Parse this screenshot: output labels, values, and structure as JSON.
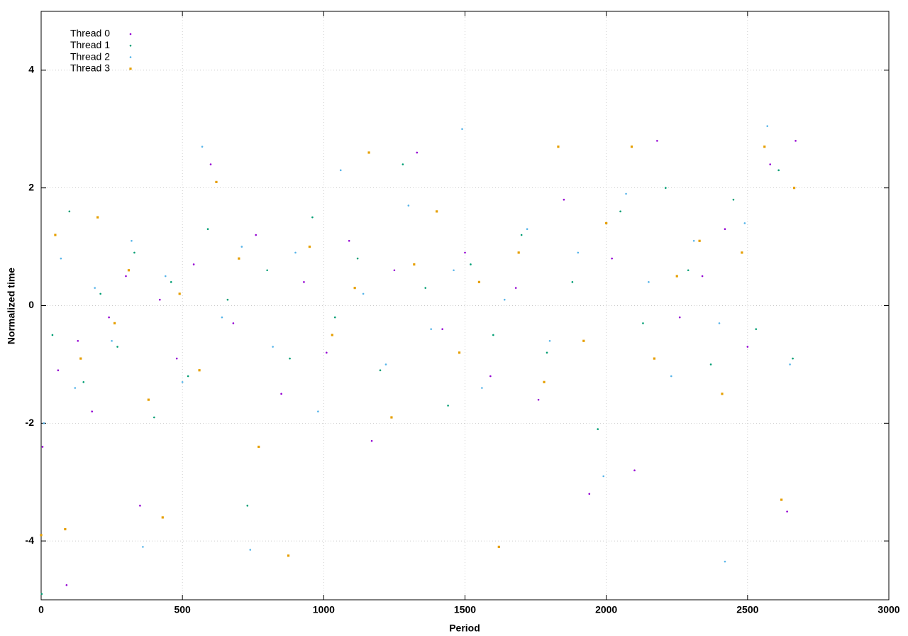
{
  "chart_data": {
    "type": "scatter",
    "x_label": "Period",
    "y_label": "Normalized time",
    "xlim": [
      0,
      3000
    ],
    "xticks": [
      0,
      500,
      1000,
      1500,
      2000,
      2500,
      3000
    ],
    "ylim": [
      -5,
      5
    ],
    "yticks": [
      -4,
      -2,
      0,
      2,
      4
    ],
    "grid": true,
    "legend": "top-left",
    "series": [
      {
        "name": "Thread 0",
        "color": "#9400d3",
        "marker": "dot",
        "x": [
          5,
          60,
          90,
          130,
          180,
          240,
          300,
          350,
          420,
          480,
          540,
          600,
          680,
          760,
          850,
          930,
          1010,
          1090,
          1170,
          1250,
          1330,
          1420,
          1500,
          1590,
          1680,
          1760,
          1850,
          1940,
          2020,
          2100,
          2180,
          2260,
          2340,
          2420,
          2500,
          2580,
          2640,
          2670
        ],
        "values": [
          -2.4,
          -1.1,
          -4.75,
          -0.6,
          -1.8,
          -0.2,
          0.5,
          -3.4,
          0.1,
          -0.9,
          0.7,
          2.4,
          -0.3,
          1.2,
          -1.5,
          0.4,
          -0.8,
          1.1,
          -2.3,
          0.6,
          2.6,
          -0.4,
          0.9,
          -1.2,
          0.3,
          -1.6,
          1.8,
          -3.2,
          0.8,
          -2.8,
          2.8,
          -0.2,
          0.5,
          1.3,
          -0.7,
          2.4,
          -3.5,
          2.8
        ]
      },
      {
        "name": "Thread 1",
        "color": "#009e73",
        "marker": "dot",
        "x": [
          2,
          40,
          100,
          150,
          210,
          270,
          330,
          400,
          460,
          520,
          590,
          660,
          730,
          800,
          880,
          960,
          1040,
          1120,
          1200,
          1280,
          1360,
          1440,
          1520,
          1600,
          1700,
          1790,
          1880,
          1970,
          2050,
          2130,
          2210,
          2290,
          2370,
          2450,
          2530,
          2610,
          2660
        ],
        "values": [
          -4.9,
          -0.5,
          1.6,
          -1.3,
          0.2,
          -0.7,
          0.9,
          -1.9,
          0.4,
          -1.2,
          1.3,
          0.1,
          -3.4,
          0.6,
          -0.9,
          1.5,
          -0.2,
          0.8,
          -1.1,
          2.4,
          0.3,
          -1.7,
          0.7,
          -0.5,
          1.2,
          -0.8,
          0.4,
          -2.1,
          1.6,
          -0.3,
          2.0,
          0.6,
          -1.0,
          1.8,
          -0.4,
          2.3,
          -0.9
        ]
      },
      {
        "name": "Thread 2",
        "color": "#56b4e9",
        "marker": "dot",
        "x": [
          10,
          70,
          120,
          190,
          250,
          320,
          360,
          440,
          500,
          570,
          640,
          710,
          740,
          820,
          900,
          980,
          1060,
          1140,
          1220,
          1300,
          1380,
          1460,
          1490,
          1560,
          1640,
          1720,
          1800,
          1900,
          1990,
          2070,
          2150,
          2230,
          2310,
          2400,
          2420,
          2490,
          2570,
          2650
        ],
        "values": [
          -2.0,
          0.8,
          -1.4,
          0.3,
          -0.6,
          1.1,
          -4.1,
          0.5,
          -1.3,
          2.7,
          -0.2,
          1.0,
          -4.15,
          -0.7,
          0.9,
          -1.8,
          2.3,
          0.2,
          -1.0,
          1.7,
          -0.4,
          0.6,
          3.0,
          -1.4,
          0.1,
          1.3,
          -0.6,
          0.9,
          -2.9,
          1.9,
          0.4,
          -1.2,
          1.1,
          -0.3,
          -4.35,
          1.4,
          3.05,
          -1.0
        ]
      },
      {
        "name": "Thread 3",
        "color": "#e69f00",
        "marker": "square",
        "x": [
          0,
          50,
          85,
          140,
          200,
          260,
          310,
          380,
          430,
          490,
          560,
          620,
          700,
          770,
          875,
          950,
          1030,
          1110,
          1160,
          1240,
          1320,
          1400,
          1480,
          1550,
          1620,
          1690,
          1780,
          1830,
          1920,
          2000,
          2090,
          2170,
          2250,
          2330,
          2410,
          2480,
          2560,
          2620,
          2665
        ],
        "values": [
          -3.9,
          1.2,
          -3.8,
          -0.9,
          1.5,
          -0.3,
          0.6,
          -1.6,
          -3.6,
          0.2,
          -1.1,
          2.1,
          0.8,
          -2.4,
          -4.25,
          1.0,
          -0.5,
          0.3,
          2.6,
          -1.9,
          0.7,
          1.6,
          -0.8,
          0.4,
          -4.1,
          0.9,
          -1.3,
          2.7,
          -0.6,
          1.4,
          2.7,
          -0.9,
          0.5,
          1.1,
          -1.5,
          0.9,
          2.7,
          -3.3,
          2.0
        ]
      }
    ]
  }
}
